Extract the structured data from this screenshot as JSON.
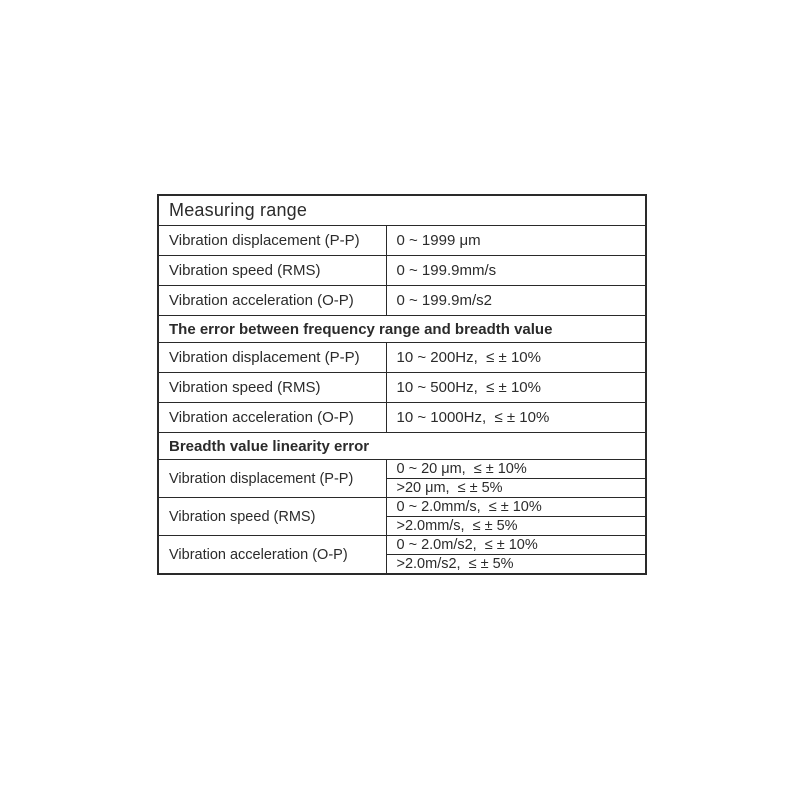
{
  "page": {
    "background": "#ffffff",
    "text_color": "#2b2b2b",
    "border_color": "#2a2a2a"
  },
  "table": {
    "sections": [
      {
        "header": "Measuring range",
        "rows": [
          {
            "label": "Vibration displacement (P-P)",
            "value": "0 ~ 1999 μm"
          },
          {
            "label": "Vibration speed (RMS)",
            "value": "0 ~ 199.9mm/s"
          },
          {
            "label": "Vibration acceleration (O-P)",
            "value": "0 ~ 199.9m/s2"
          }
        ]
      },
      {
        "header": "The error between frequency range and breadth value",
        "rows": [
          {
            "label": "Vibration displacement (P-P)",
            "value": "10 ~ 200Hz,  ≤ ± 10%"
          },
          {
            "label": "Vibration speed (RMS)",
            "value": "10 ~ 500Hz,  ≤ ± 10%"
          },
          {
            "label": "Vibration acceleration (O-P)",
            "value": "10 ~ 1000Hz,  ≤ ± 10%"
          }
        ]
      },
      {
        "header": "Breadth value linearity error",
        "rows": [
          {
            "label": "Vibration displacement (P-P)",
            "values": [
              "0 ~ 20 μm,  ≤ ± 10%",
              ">20 μm,  ≤ ± 5%"
            ]
          },
          {
            "label": "Vibration speed (RMS)",
            "values": [
              "0 ~ 2.0mm/s,  ≤ ± 10%",
              ">2.0mm/s,  ≤ ± 5%"
            ]
          },
          {
            "label": "Vibration acceleration (O-P)",
            "values": [
              "0 ~ 2.0m/s2,  ≤ ± 10%",
              ">2.0m/s2,  ≤ ± 5%"
            ]
          }
        ]
      }
    ]
  }
}
